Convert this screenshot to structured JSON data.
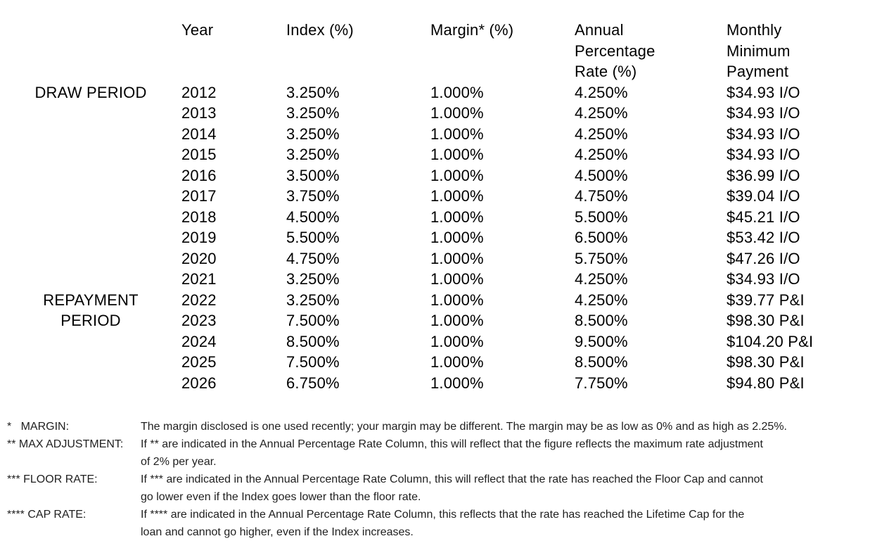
{
  "table": {
    "headers": {
      "period": [],
      "year": [
        "Year"
      ],
      "index": [
        "Index (%)"
      ],
      "margin": [
        "Margin* (%)"
      ],
      "apr": [
        "Annual",
        "Percentage",
        "Rate (%)"
      ],
      "payment": [
        "Monthly",
        "Minimum",
        "Payment"
      ]
    },
    "rows": [
      {
        "period": "DRAW PERIOD",
        "year": "2012",
        "index": "3.250%",
        "margin": "1.000%",
        "apr": "4.250%",
        "payment": "$34.93 I/O"
      },
      {
        "period": "",
        "year": "2013",
        "index": "3.250%",
        "margin": "1.000%",
        "apr": "4.250%",
        "payment": "$34.93 I/O"
      },
      {
        "period": "",
        "year": "2014",
        "index": "3.250%",
        "margin": "1.000%",
        "apr": "4.250%",
        "payment": "$34.93 I/O"
      },
      {
        "period": "",
        "year": "2015",
        "index": "3.250%",
        "margin": "1.000%",
        "apr": "4.250%",
        "payment": "$34.93 I/O"
      },
      {
        "period": "",
        "year": "2016",
        "index": "3.500%",
        "margin": "1.000%",
        "apr": "4.500%",
        "payment": "$36.99 I/O"
      },
      {
        "period": "",
        "year": "2017",
        "index": "3.750%",
        "margin": "1.000%",
        "apr": "4.750%",
        "payment": "$39.04 I/O"
      },
      {
        "period": "",
        "year": "2018",
        "index": "4.500%",
        "margin": "1.000%",
        "apr": "5.500%",
        "payment": "$45.21 I/O"
      },
      {
        "period": "",
        "year": "2019",
        "index": "5.500%",
        "margin": "1.000%",
        "apr": "6.500%",
        "payment": "$53.42 I/O"
      },
      {
        "period": "",
        "year": "2020",
        "index": "4.750%",
        "margin": "1.000%",
        "apr": "5.750%",
        "payment": "$47.26 I/O"
      },
      {
        "period": "",
        "year": "2021",
        "index": "3.250%",
        "margin": "1.000%",
        "apr": "4.250%",
        "payment": "$34.93 I/O"
      },
      {
        "period": "REPAYMENT",
        "year": "2022",
        "index": "3.250%",
        "margin": "1.000%",
        "apr": "4.250%",
        "payment": "$39.77 P&I"
      },
      {
        "period": "PERIOD",
        "year": "2023",
        "index": "7.500%",
        "margin": "1.000%",
        "apr": "8.500%",
        "payment": "$98.30 P&I"
      },
      {
        "period": "",
        "year": "2024",
        "index": "8.500%",
        "margin": "1.000%",
        "apr": "9.500%",
        "payment": "$104.20 P&I"
      },
      {
        "period": "",
        "year": "2025",
        "index": "7.500%",
        "margin": "1.000%",
        "apr": "8.500%",
        "payment": "$98.30 P&I"
      },
      {
        "period": "",
        "year": "2026",
        "index": "6.750%",
        "margin": "1.000%",
        "apr": "7.750%",
        "payment": "$94.80 P&I"
      }
    ]
  },
  "footnotes": [
    {
      "label": "*   MARGIN:",
      "lines": [
        "The margin disclosed is one used recently; your margin may be different. The margin may be as low as 0% and as high as 2.25%."
      ]
    },
    {
      "label": "** MAX ADJUSTMENT:",
      "lines": [
        "If ** are indicated in the Annual Percentage Rate Column, this will reflect that the figure reflects the maximum rate adjustment",
        "of 2% per year."
      ]
    },
    {
      "label": "*** FLOOR RATE:",
      "lines": [
        "If *** are indicated in the Annual Percentage Rate Column, this will reflect that the rate has reached the Floor Cap and cannot",
        "go lower even if the Index goes lower than the floor rate."
      ]
    },
    {
      "label": "**** CAP RATE:",
      "lines": [
        "If **** are indicated in the Annual Percentage Rate Column, this reflects that the rate has reached the Lifetime Cap for the",
        "loan and cannot go higher, even if the Index increases."
      ]
    }
  ]
}
